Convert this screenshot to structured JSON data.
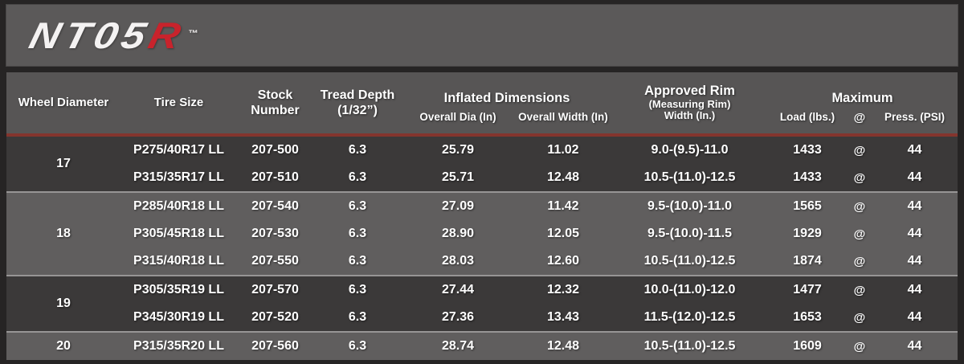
{
  "logo": {
    "text_white": "NT05",
    "text_red": "R",
    "trademark": "™"
  },
  "colors": {
    "page_background": "#262424",
    "logo_bar_background": "#5b5959",
    "header_background": "#575555",
    "header_accent_line": "#84352e",
    "row_group_dark": "#3b3939",
    "row_group_light": "#605e5e",
    "logo_red": "#c8232c",
    "text": "#ffffff"
  },
  "table": {
    "header": {
      "wheel_diameter": "Wheel Diameter",
      "tire_size": "Tire Size",
      "stock": [
        "Stock",
        "Number"
      ],
      "tread": [
        "Tread Depth",
        "(1/32”)"
      ],
      "inflated_dimensions": "Inflated Dimensions",
      "overall_dia": "Overall Dia (In)",
      "overall_width": "Overall Width (In)",
      "rim": [
        "Approved Rim",
        "(Measuring Rim)",
        "Width (In.)"
      ],
      "maximum": "Maximum",
      "load": "Load (lbs.)",
      "at": "@",
      "press": "Press. (PSI)"
    },
    "groups": [
      {
        "wheel_diameter": "17",
        "rows": [
          {
            "tire_size": "P275/40R17 LL",
            "stock_number": "207-500",
            "tread_depth": "6.3",
            "overall_dia": "25.79",
            "overall_width": "11.02",
            "rim_width": "9.0-(9.5)-11.0",
            "load": "1433",
            "at": "@",
            "press": "44"
          },
          {
            "tire_size": "P315/35R17 LL",
            "stock_number": "207-510",
            "tread_depth": "6.3",
            "overall_dia": "25.71",
            "overall_width": "12.48",
            "rim_width": "10.5-(11.0)-12.5",
            "load": "1433",
            "at": "@",
            "press": "44"
          }
        ]
      },
      {
        "wheel_diameter": "18",
        "rows": [
          {
            "tire_size": "P285/40R18 LL",
            "stock_number": "207-540",
            "tread_depth": "6.3",
            "overall_dia": "27.09",
            "overall_width": "11.42",
            "rim_width": "9.5-(10.0)-11.0",
            "load": "1565",
            "at": "@",
            "press": "44"
          },
          {
            "tire_size": "P305/45R18 LL",
            "stock_number": "207-530",
            "tread_depth": "6.3",
            "overall_dia": "28.90",
            "overall_width": "12.05",
            "rim_width": "9.5-(10.0)-11.5",
            "load": "1929",
            "at": "@",
            "press": "44"
          },
          {
            "tire_size": "P315/40R18 LL",
            "stock_number": "207-550",
            "tread_depth": "6.3",
            "overall_dia": "28.03",
            "overall_width": "12.60",
            "rim_width": "10.5-(11.0)-12.5",
            "load": "1874",
            "at": "@",
            "press": "44"
          }
        ]
      },
      {
        "wheel_diameter": "19",
        "rows": [
          {
            "tire_size": "P305/35R19 LL",
            "stock_number": "207-570",
            "tread_depth": "6.3",
            "overall_dia": "27.44",
            "overall_width": "12.32",
            "rim_width": "10.0-(11.0)-12.0",
            "load": "1477",
            "at": "@",
            "press": "44"
          },
          {
            "tire_size": "P345/30R19 LL",
            "stock_number": "207-520",
            "tread_depth": "6.3",
            "overall_dia": "27.36",
            "overall_width": "13.43",
            "rim_width": "11.5-(12.0)-12.5",
            "load": "1653",
            "at": "@",
            "press": "44"
          }
        ]
      },
      {
        "wheel_diameter": "20",
        "rows": [
          {
            "tire_size": "P315/35R20 LL",
            "stock_number": "207-560",
            "tread_depth": "6.3",
            "overall_dia": "28.74",
            "overall_width": "12.48",
            "rim_width": "10.5-(11.0)-12.5",
            "load": "1609",
            "at": "@",
            "press": "44"
          }
        ]
      }
    ]
  }
}
